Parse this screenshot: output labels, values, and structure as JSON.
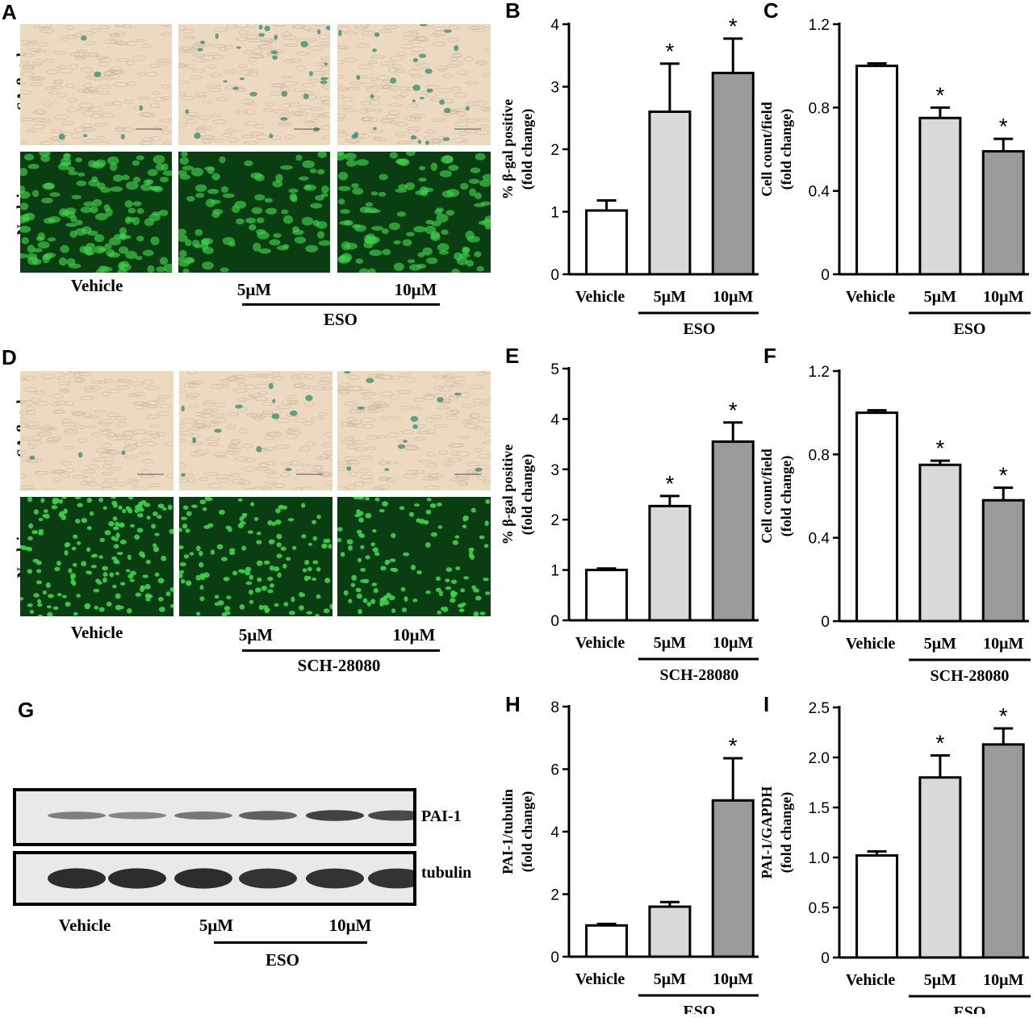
{
  "panels": {
    "A": {
      "letter": "A",
      "row_labels": [
        "SA-β-gal",
        "Nuclei"
      ],
      "conditions": [
        "Vehicle",
        "5μM",
        "10μM"
      ],
      "treatment": "ESO"
    },
    "D": {
      "letter": "D",
      "row_labels": [
        "SA-β-gal",
        "Nuclei"
      ],
      "conditions": [
        "Vehicle",
        "5μM",
        "10μM"
      ],
      "treatment": "SCH-28080"
    },
    "G": {
      "letter": "G",
      "bands": [
        "PAI-1",
        "tubulin"
      ],
      "conditions": [
        "Vehicle",
        "5μM",
        "10μM"
      ],
      "treatment": "ESO",
      "pai1_band_intensity": [
        0.35,
        0.3,
        0.4,
        0.55,
        0.75,
        0.7
      ],
      "tubulin_band_intensity": [
        0.9,
        0.9,
        0.9,
        0.85,
        0.85,
        0.85
      ]
    }
  },
  "colors": {
    "vehicle": "#ffffff",
    "low": "#d9d9d9",
    "high": "#9a9a9a",
    "sa_bg": "#ecd9bf",
    "nuclei_bg": "#0b3d12",
    "nuclei_fg": "#3fd14c",
    "stain": "#2f8c6e"
  },
  "chart_data": [
    {
      "id": "B",
      "letter": "B",
      "type": "bar",
      "categories": [
        "Vehicle",
        "5μM",
        "10μM"
      ],
      "treatment": "ESO",
      "values": [
        1.02,
        2.6,
        3.22
      ],
      "errors": [
        0.16,
        0.77,
        0.55
      ],
      "significant": [
        false,
        true,
        true
      ],
      "ylim": [
        0,
        4
      ],
      "yticks": [
        "0",
        "1",
        "2",
        "3",
        "4"
      ],
      "ylabel": [
        "% β-gal positive",
        "(fold change)"
      ]
    },
    {
      "id": "C",
      "letter": "C",
      "type": "bar",
      "categories": [
        "Vehicle",
        "5μM",
        "10μM"
      ],
      "treatment": "ESO",
      "values": [
        1.0,
        0.75,
        0.59
      ],
      "errors": [
        0.012,
        0.05,
        0.06
      ],
      "significant": [
        false,
        true,
        true
      ],
      "ylim": [
        0,
        1.2
      ],
      "yticks": [
        "0",
        "0.4",
        "0.8",
        "1.2"
      ],
      "ylabel": [
        "Cell count/field",
        "(fold change)"
      ]
    },
    {
      "id": "E",
      "letter": "E",
      "type": "bar",
      "categories": [
        "Vehicle",
        "5μM",
        "10μM"
      ],
      "treatment": "SCH-28080",
      "values": [
        1.0,
        2.27,
        3.55
      ],
      "errors": [
        0.03,
        0.2,
        0.38
      ],
      "significant": [
        false,
        true,
        true
      ],
      "ylim": [
        0,
        5
      ],
      "yticks": [
        "0",
        "1",
        "2",
        "3",
        "4",
        "5"
      ],
      "ylabel": [
        "% β-gal positive",
        "(fold change)"
      ]
    },
    {
      "id": "F",
      "letter": "F",
      "type": "bar",
      "categories": [
        "Vehicle",
        "5μM",
        "10μM"
      ],
      "treatment": "SCH-28080",
      "values": [
        1.0,
        0.75,
        0.58
      ],
      "errors": [
        0.012,
        0.02,
        0.06
      ],
      "significant": [
        false,
        true,
        true
      ],
      "ylim": [
        0,
        1.2
      ],
      "yticks": [
        "0",
        "0.4",
        "0.8",
        "1.2"
      ],
      "ylabel": [
        "Cell count/field",
        "(fold change)"
      ]
    },
    {
      "id": "H",
      "letter": "H",
      "type": "bar",
      "categories": [
        "Vehicle",
        "5μM",
        "10μM"
      ],
      "treatment": "ESO",
      "values": [
        1.0,
        1.6,
        5.0
      ],
      "errors": [
        0.05,
        0.15,
        1.35
      ],
      "significant": [
        false,
        false,
        true
      ],
      "ylim": [
        0,
        8
      ],
      "yticks": [
        "0",
        "2",
        "4",
        "6",
        "8"
      ],
      "ylabel": [
        "PAI-1/tubulin",
        "(fold change)"
      ]
    },
    {
      "id": "I",
      "letter": "I",
      "type": "bar",
      "categories": [
        "Vehicle",
        "5μM",
        "10μM"
      ],
      "treatment": "ESO",
      "values": [
        1.02,
        1.8,
        2.13
      ],
      "errors": [
        0.04,
        0.22,
        0.16
      ],
      "significant": [
        false,
        true,
        true
      ],
      "ylim": [
        0,
        2.5
      ],
      "yticks": [
        "0",
        "0.5",
        "1.0",
        "1.5",
        "2.0",
        "2.5"
      ],
      "ylabel": [
        "PAI-1/GAPDH",
        "(fold change)"
      ]
    }
  ]
}
